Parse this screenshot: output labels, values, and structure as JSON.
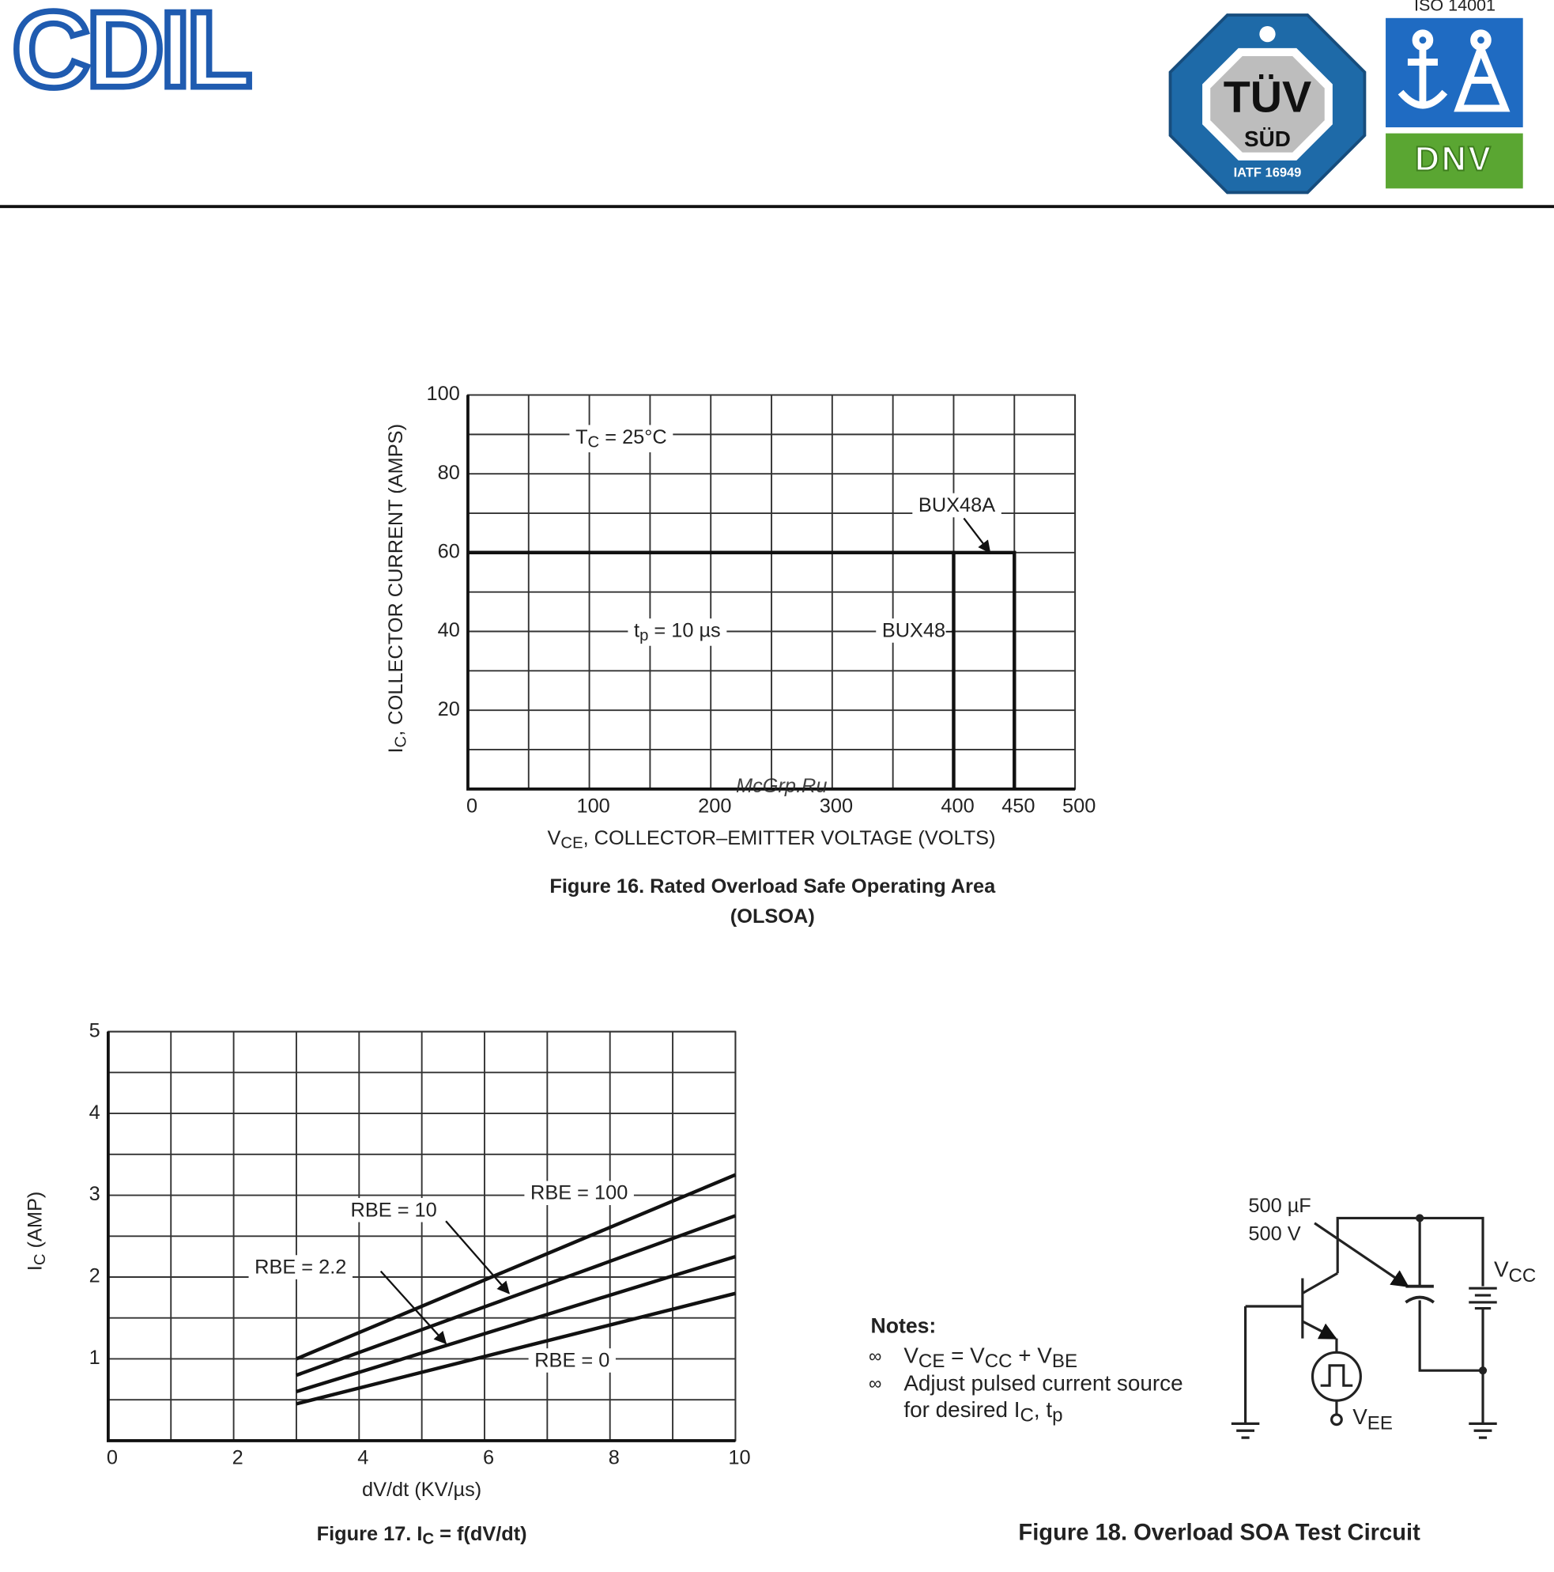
{
  "header": {
    "logo": "CDIL",
    "badge": {
      "top": "TÜV",
      "bottom": "SÜD",
      "cert": "IATF 16949"
    },
    "iso": "ISO 14001",
    "dnv": "DNV"
  },
  "watermark": "McGrp.Ru",
  "chart_data": [
    {
      "type": "line",
      "title": [
        "Figure 16. Rated Overload Safe Operating Area",
        "(OLSOA)"
      ],
      "xlabel": {
        "text": "V",
        "sub": "CE",
        "rest": ", COLLECTOR–EMITTER VOLTAGE (VOLTS)"
      },
      "ylabel": {
        "text": "I",
        "sub": "C",
        "rest": ", COLLECTOR CURRENT (AMPS)"
      },
      "xlim": [
        0,
        500
      ],
      "ylim": [
        0,
        100
      ],
      "xticks": [
        0,
        100,
        200,
        300,
        400,
        450,
        500
      ],
      "yticks": [
        20,
        40,
        60,
        80,
        100
      ],
      "xgrid_minor": [
        50,
        150,
        250,
        350
      ],
      "ygrid_minor": [
        10,
        30,
        50,
        70,
        90
      ],
      "grid": true,
      "color": "#111111",
      "annotations": [
        {
          "text": "T",
          "sub": "C",
          "rest": " = 25°C"
        },
        {
          "text": "t",
          "sub": "p",
          "rest": " = 10 µs"
        }
      ],
      "series": [
        {
          "name": "BUX48",
          "x": [
            0,
            400,
            400
          ],
          "values": [
            60,
            60,
            0
          ]
        },
        {
          "name": "BUX48A",
          "x": [
            0,
            450,
            450
          ],
          "values": [
            60,
            60,
            0
          ]
        }
      ]
    },
    {
      "type": "line",
      "title": {
        "text": "Figure 17. I",
        "sub": "C",
        "rest": " = f(dV/dt)"
      },
      "xlabel": "dV/dt (KV/µs)",
      "ylabel": {
        "text": "I",
        "sub": "C",
        "rest": " (AMP)"
      },
      "xlim": [
        0,
        10
      ],
      "ylim": [
        0,
        5
      ],
      "xticks": [
        0,
        2,
        4,
        6,
        8,
        10
      ],
      "yticks": [
        1,
        2,
        3,
        4,
        5
      ],
      "xgrid_minor": [
        1,
        3,
        5,
        7,
        9
      ],
      "ygrid_minor": [
        0.5,
        1.5,
        2.5,
        3.5,
        4.5
      ],
      "grid": true,
      "color": "#111111",
      "annotations": [],
      "series": [
        {
          "name": "RBE = 100",
          "x": [
            3,
            10
          ],
          "values": [
            1.0,
            3.25
          ]
        },
        {
          "name": "RBE = 10",
          "x": [
            3,
            10
          ],
          "values": [
            0.8,
            2.75
          ]
        },
        {
          "name": "RBE = 2.2",
          "x": [
            3,
            10
          ],
          "values": [
            0.6,
            2.25
          ]
        },
        {
          "name": "RBE = 0",
          "x": [
            3,
            10
          ],
          "values": [
            0.45,
            1.8
          ]
        }
      ]
    }
  ],
  "figure18": {
    "title": "Figure 18. Overload SOA Test Circuit",
    "cap": [
      "500 µF",
      "500 V"
    ],
    "vcc": {
      "text": "V",
      "sub": "CC"
    },
    "vee": {
      "text": "V",
      "sub": "EE"
    },
    "notes": {
      "heading": "Notes:",
      "bullet": "∞",
      "items": [
        [
          "V",
          "CE",
          " = V",
          "CC",
          " + V",
          "BE"
        ],
        [
          "Adjust pulsed current source"
        ],
        [
          "for desired I",
          "C",
          ", t",
          "p"
        ]
      ]
    }
  }
}
